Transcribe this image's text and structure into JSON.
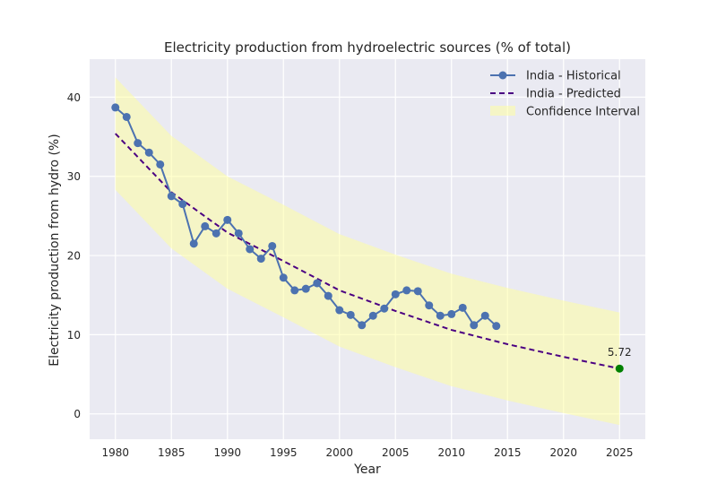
{
  "chart_data": {
    "type": "line",
    "title": "Electricity production from hydroelectric sources (% of total)",
    "xlabel": "Year",
    "ylabel": "Electricity production from hydro (%)",
    "xlim": [
      1977.7,
      2027.3
    ],
    "ylim": [
      -3.2,
      44.8
    ],
    "xticks": [
      1980,
      1985,
      1990,
      1995,
      2000,
      2005,
      2010,
      2015,
      2020,
      2025
    ],
    "yticks": [
      0,
      10,
      20,
      30,
      40
    ],
    "grid": true,
    "legend_position": "top-right",
    "legend": {
      "historical": "India - Historical",
      "predicted": "India - Predicted",
      "confidence": "Confidence Interval"
    },
    "colors": {
      "historical": "#4c72b0",
      "predicted": "#4b0082",
      "confidence": "#ffff99",
      "endpoint": "#008000",
      "background": "#eaeaf2"
    },
    "series": [
      {
        "name": "India - Historical",
        "x": [
          1980,
          1981,
          1982,
          1983,
          1984,
          1985,
          1986,
          1987,
          1988,
          1989,
          1990,
          1991,
          1992,
          1993,
          1994,
          1995,
          1996,
          1997,
          1998,
          1999,
          2000,
          2001,
          2002,
          2003,
          2004,
          2005,
          2006,
          2007,
          2008,
          2009,
          2010,
          2011,
          2012,
          2013,
          2014
        ],
        "y": [
          38.7,
          37.5,
          34.2,
          33.0,
          31.5,
          27.5,
          26.5,
          21.5,
          23.7,
          22.8,
          24.5,
          22.8,
          20.8,
          19.6,
          21.2,
          17.2,
          15.6,
          15.8,
          16.5,
          14.9,
          13.1,
          12.5,
          11.2,
          12.4,
          13.3,
          15.1,
          15.6,
          15.5,
          13.7,
          12.4,
          12.6,
          13.4,
          11.2,
          12.4,
          11.1
        ]
      },
      {
        "name": "India - Predicted",
        "x": [
          1980,
          1985,
          1990,
          1995,
          2000,
          2005,
          2010,
          2015,
          2020,
          2025
        ],
        "y": [
          35.4,
          28.0,
          22.9,
          19.3,
          15.6,
          13.0,
          10.6,
          8.8,
          7.2,
          5.72
        ]
      }
    ],
    "confidence_interval": {
      "x": [
        1980,
        1985,
        1990,
        1995,
        2000,
        2005,
        2010,
        2015,
        2020,
        2025
      ],
      "upper": [
        42.5,
        35.1,
        30.0,
        26.4,
        22.7,
        20.1,
        17.7,
        15.9,
        14.3,
        12.8
      ],
      "lower": [
        28.3,
        20.9,
        15.8,
        12.2,
        8.5,
        5.9,
        3.5,
        1.7,
        0.1,
        -1.4
      ]
    },
    "annotation": {
      "x": 2025,
      "y": 5.72,
      "text": "5.72"
    }
  }
}
